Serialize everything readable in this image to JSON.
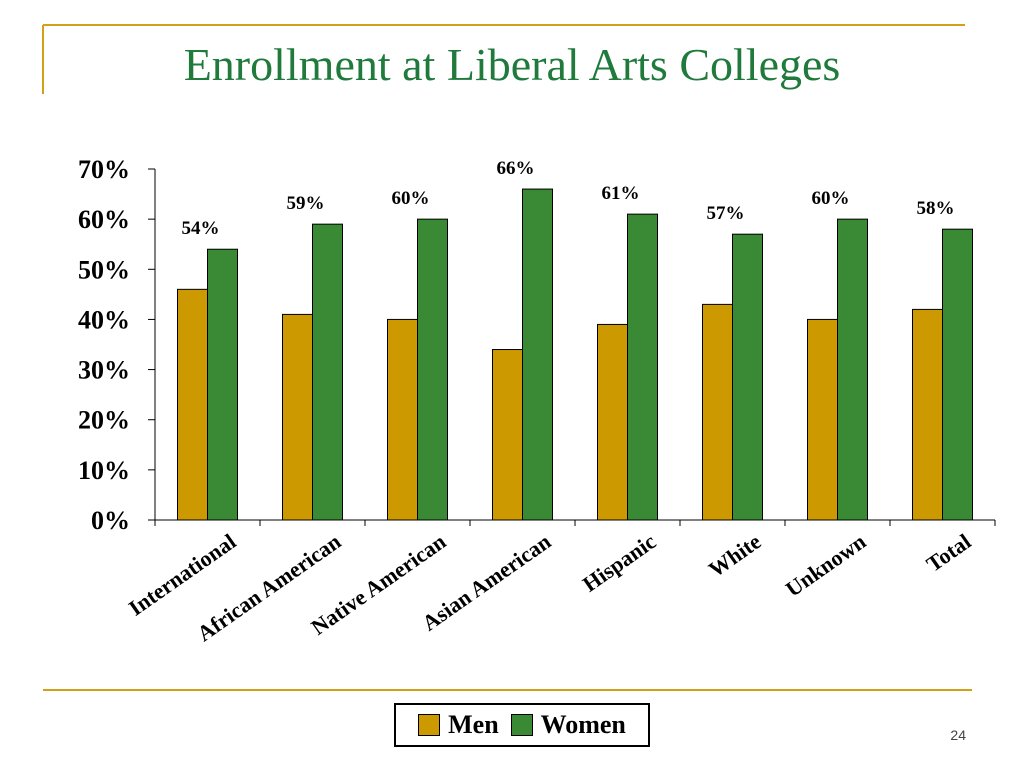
{
  "slide": {
    "title": "Enrollment at Liberal Arts Colleges",
    "number": "24"
  },
  "colors": {
    "title": "#1f7a3c",
    "men": "#cc9900",
    "women": "#3a8a35",
    "frame_accent": "#d4a017"
  },
  "chart_data": {
    "type": "bar",
    "categories": [
      "International",
      "African American",
      "Native American",
      "Asian American",
      "Hispanic",
      "White",
      "Unknown",
      "Total"
    ],
    "series": [
      {
        "name": "Men",
        "values": [
          46,
          41,
          40,
          34,
          39,
          43,
          40,
          42
        ]
      },
      {
        "name": "Women",
        "values": [
          54,
          59,
          60,
          66,
          61,
          57,
          60,
          58
        ]
      }
    ],
    "data_labels": [
      "54%",
      "59%",
      "60%",
      "66%",
      "61%",
      "57%",
      "60%",
      "58%"
    ],
    "y_ticks": [
      "0%",
      "10%",
      "20%",
      "30%",
      "40%",
      "50%",
      "60%",
      "70%"
    ],
    "ylim": [
      0,
      70
    ],
    "grid": false,
    "legend_position": "bottom"
  }
}
